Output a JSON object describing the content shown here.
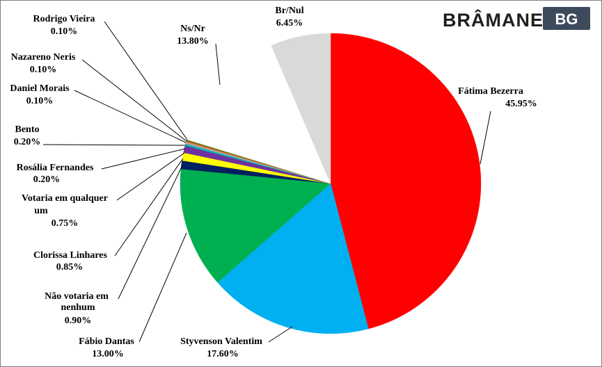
{
  "logo": {
    "brand": "BRÂMANE",
    "badge": "BG",
    "badge_color": "#3d4a5c"
  },
  "chart_data": {
    "type": "pie",
    "start_angle_deg": 0,
    "direction": "clockwise",
    "slices": [
      {
        "name": "Fátima Bezerra",
        "pct_label": "45.95%",
        "value": 45.95,
        "color": "#ff0000"
      },
      {
        "name": "Styvenson Valentim",
        "pct_label": "17.60%",
        "value": 17.6,
        "color": "#00b0f0"
      },
      {
        "name": "Fábio Dantas",
        "pct_label": "13.00%",
        "value": 13.0,
        "color": "#00b050"
      },
      {
        "name": "Não votaria em nenhum",
        "pct_label": "0.90%",
        "value": 0.9,
        "color": "#002060"
      },
      {
        "name": "Clorissa Linhares",
        "pct_label": "0.85%",
        "value": 0.85,
        "color": "#ffff00"
      },
      {
        "name": "Votaria em qualquer um",
        "pct_label": "0.75%",
        "value": 0.75,
        "color": "#7030a0"
      },
      {
        "name": "Rosália Fernandes",
        "pct_label": "0.20%",
        "value": 0.2,
        "color": "#00b0b0"
      },
      {
        "name": "Bento",
        "pct_label": "0.20%",
        "value": 0.2,
        "color": "#a5a5a5"
      },
      {
        "name": "Daniel Morais",
        "pct_label": "0.10%",
        "value": 0.1,
        "color": "#ed7d31"
      },
      {
        "name": "Nazareno Neris",
        "pct_label": "0.10%",
        "value": 0.1,
        "color": "#8b4513"
      },
      {
        "name": "Rodrigo Vieira",
        "pct_label": "0.10%",
        "value": 0.1,
        "color": "#70ad47"
      },
      {
        "name": "Ns/Nr",
        "pct_label": "13.80%",
        "value": 13.8,
        "color": "#ffffff"
      },
      {
        "name": "Br/Nul",
        "pct_label": "6.45%",
        "value": 6.45,
        "color": "#d9d9d9"
      }
    ]
  }
}
